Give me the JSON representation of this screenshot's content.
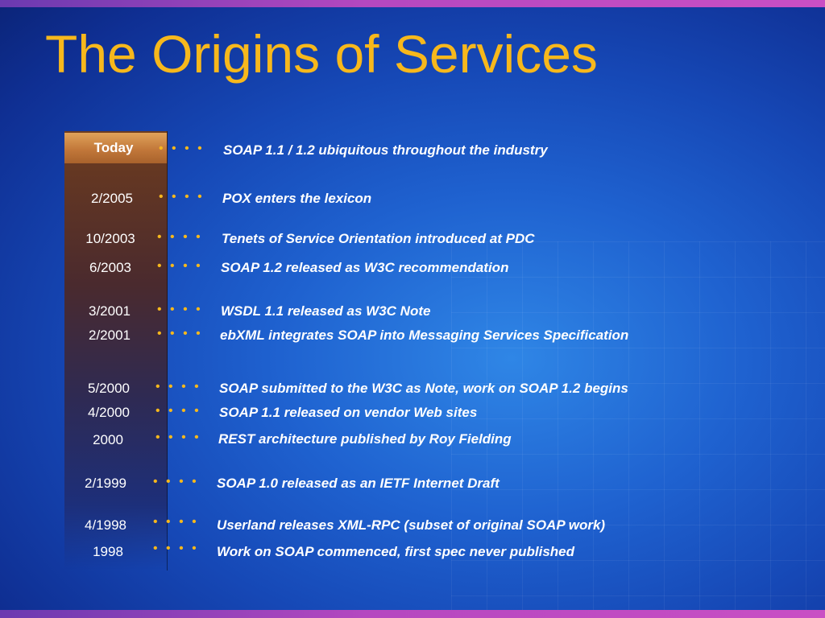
{
  "slide": {
    "title": "The Origins of Services",
    "today_label": "Today"
  },
  "events": [
    {
      "date": "",
      "dots": "• • • •",
      "text": "SOAP 1.1 / 1.2 ubiquitous throughout the industry"
    },
    {
      "date": "2/2005",
      "dots": "• • • •",
      "text": "POX enters the lexicon"
    },
    {
      "date": "10/2003",
      "dots": "• • • •",
      "text": "Tenets of Service Orientation introduced at PDC"
    },
    {
      "date": "6/2003",
      "dots": "• • • •",
      "text": "SOAP 1.2 released as W3C recommendation"
    },
    {
      "date": "3/2001",
      "dots": "• • • •",
      "text": "WSDL 1.1 released as W3C Note"
    },
    {
      "date": "2/2001",
      "dots": "• • • •",
      "text": "ebXML integrates SOAP into Messaging Services Specification"
    },
    {
      "date": "5/2000",
      "dots": "• • • •",
      "text": "SOAP submitted to the W3C as Note, work on SOAP 1.2 begins"
    },
    {
      "date": "4/2000",
      "dots": "• • • •",
      "text": "SOAP 1.1 released on vendor Web sites"
    },
    {
      "date": "2000",
      "dots": "• • • •",
      "text": "REST architecture published by Roy Fielding"
    },
    {
      "date": "2/1999",
      "dots": "• • • •",
      "text": "SOAP 1.0 released as an IETF Internet Draft"
    },
    {
      "date": "4/1998",
      "dots": "• • • •",
      "text": "Userland releases XML-RPC (subset of original SOAP work)"
    },
    {
      "date": "1998",
      "dots": "• • • •",
      "text": "Work on SOAP commenced, first spec never published"
    }
  ],
  "colors": {
    "title": "#f7b81c",
    "dots": "#f7b81c",
    "text": "#ffffff",
    "background": "#1a55c4",
    "accent_bar": "#b548c0"
  }
}
